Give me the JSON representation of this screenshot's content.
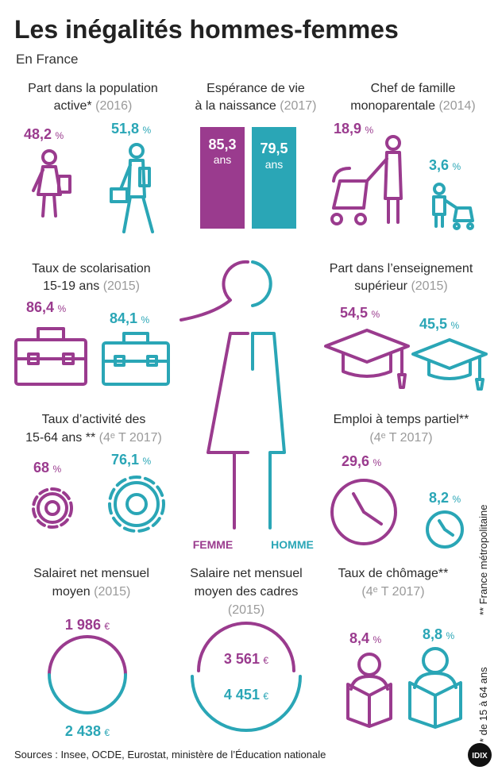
{
  "header": {
    "title": "Les inégalités hommes-femmes",
    "subtitle": "En France"
  },
  "panels": [
    {
      "label": [
        "Part dans la population",
        "active*"
      ],
      "year": "(2016)",
      "femme": {
        "value": "48,2",
        "unit": "%"
      },
      "homme": {
        "value": "51,8",
        "unit": "%"
      }
    },
    {
      "label": [
        "Espérance de vie",
        "à la naissance"
      ],
      "year": "(2017)",
      "femme": {
        "value": "85,3",
        "unit": "ans"
      },
      "homme": {
        "value": "79,5",
        "unit": "ans"
      }
    },
    {
      "label": [
        "Chef de famille",
        "monoparentale"
      ],
      "year": "(2014)",
      "femme": {
        "value": "18,9",
        "unit": "%"
      },
      "homme": {
        "value": "3,6",
        "unit": "%"
      }
    },
    {
      "label": [
        "Taux de scolarisation",
        "15-19 ans"
      ],
      "year": "(2015)",
      "femme": {
        "value": "86,4",
        "unit": "%"
      },
      "homme": {
        "value": "84,1",
        "unit": "%"
      }
    },
    {
      "label": [
        "Part dans l’enseignement",
        "supérieur"
      ],
      "year": "(2015)",
      "femme": {
        "value": "54,5",
        "unit": "%"
      },
      "homme": {
        "value": "45,5",
        "unit": "%"
      }
    },
    {
      "label": [
        "Taux d’activité des",
        "15-64 ans **"
      ],
      "year": "(4ᵉ T 2017)",
      "femme": {
        "value": "68",
        "unit": "%"
      },
      "homme": {
        "value": "76,1",
        "unit": "%"
      }
    },
    {
      "label": [
        "Emploi à temps partiel**"
      ],
      "year": "(4ᵉ T 2017)",
      "femme": {
        "value": "29,6",
        "unit": "%"
      },
      "homme": {
        "value": "8,2",
        "unit": "%"
      }
    },
    {
      "label": [
        "Salairet net mensuel",
        "moyen"
      ],
      "year": "(2015)",
      "femme": {
        "value": "1 986",
        "unit": "€"
      },
      "homme": {
        "value": "2 438",
        "unit": "€"
      }
    },
    {
      "label": [
        "Salaire net mensuel",
        "moyen des cadres"
      ],
      "year": "(2015)",
      "femme": {
        "value": "3 561",
        "unit": "€"
      },
      "homme": {
        "value": "4 451",
        "unit": "€"
      }
    },
    {
      "label": [
        "Taux de chômage**"
      ],
      "year": "(4ᵉ T 2017)",
      "femme": {
        "value": "8,4",
        "unit": "%"
      },
      "homme": {
        "value": "8,8",
        "unit": "%"
      }
    }
  ],
  "figure": {
    "femme": "FEMME",
    "homme": "HOMME"
  },
  "notes": [
    "* de 15 à 64 ans",
    "** France métropolitaine"
  ],
  "footer": {
    "sources": "Sources : Insee, OCDE, Eurostat, ministère de l’Éducation nationale",
    "logo": "IDIX"
  }
}
